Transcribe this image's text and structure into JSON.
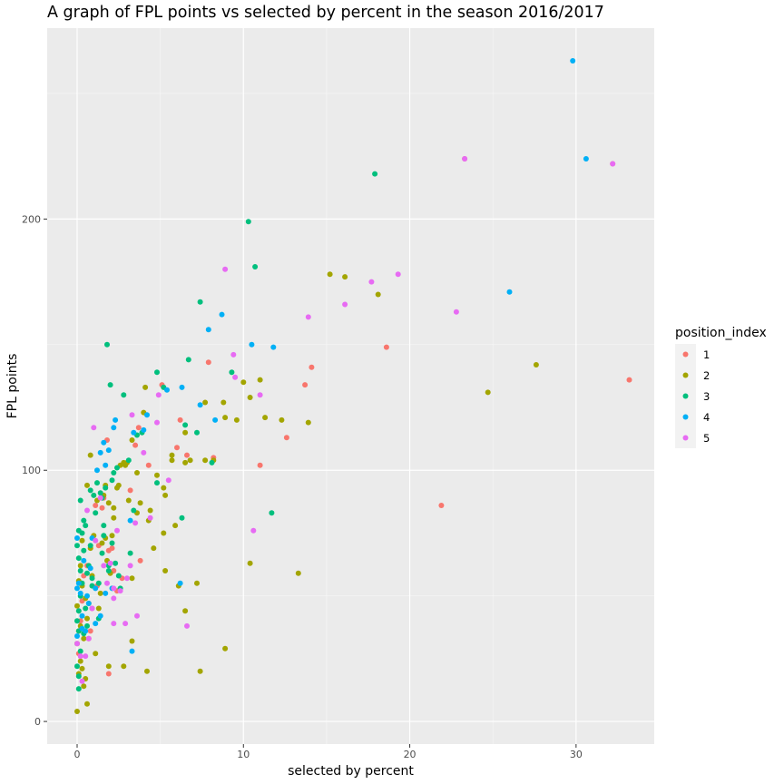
{
  "chart_data": {
    "type": "scatter",
    "title": "A graph of FPL points vs selected by percent in the season 2016/2017",
    "xlabel": "selected by percent",
    "ylabel": "FPL points",
    "xlim": [
      -1.8,
      34.7
    ],
    "ylim": [
      -9,
      276
    ],
    "x_ticks": [
      0,
      10,
      20,
      30
    ],
    "x_tick_labels": [
      "0",
      "10",
      "20",
      "30"
    ],
    "y_ticks": [
      0,
      100,
      200
    ],
    "y_tick_labels": [
      "0",
      "100",
      "200"
    ],
    "grid": true,
    "legend": {
      "title": "position_index",
      "position": "right",
      "entries": [
        {
          "label": "1",
          "color": "#F8766D"
        },
        {
          "label": "2",
          "color": "#A3A500"
        },
        {
          "label": "3",
          "color": "#00BF7D"
        },
        {
          "label": "4",
          "color": "#00B0F6"
        },
        {
          "label": "5",
          "color": "#E76BF3"
        }
      ]
    },
    "series": [
      {
        "name": "1",
        "color": "#F8766D",
        "points": [
          [
            33.2,
            136
          ],
          [
            32.2,
            222
          ],
          [
            23.3,
            224
          ],
          [
            21.9,
            86
          ],
          [
            18.6,
            149
          ],
          [
            14.1,
            141
          ],
          [
            13.7,
            134
          ],
          [
            12.6,
            113
          ],
          [
            11,
            102
          ],
          [
            8.2,
            105
          ],
          [
            7.9,
            143
          ],
          [
            6.6,
            106
          ],
          [
            6.2,
            120
          ],
          [
            6,
            109
          ],
          [
            5.1,
            134
          ],
          [
            4.3,
            102
          ],
          [
            3.7,
            117
          ],
          [
            3.5,
            110
          ],
          [
            3.2,
            92
          ],
          [
            3.8,
            64
          ],
          [
            2.7,
            57
          ],
          [
            2.4,
            52
          ],
          [
            2.2,
            60
          ],
          [
            1.9,
            68
          ],
          [
            1.8,
            112
          ],
          [
            1.6,
            89
          ],
          [
            1.3,
            70
          ],
          [
            1.1,
            86
          ],
          [
            0.9,
            45
          ],
          [
            0.7,
            33
          ],
          [
            0.6,
            62
          ],
          [
            0.4,
            58
          ],
          [
            0.3,
            48
          ],
          [
            0.2,
            40
          ],
          [
            0.1,
            27
          ],
          [
            1.9,
            19
          ],
          [
            0.8,
            36
          ],
          [
            1.5,
            85
          ],
          [
            2.1,
            69
          ],
          [
            1.2,
            54
          ]
        ]
      },
      {
        "name": "2",
        "color": "#A3A500",
        "points": [
          [
            27.6,
            142
          ],
          [
            24.7,
            131
          ],
          [
            18.1,
            170
          ],
          [
            16.1,
            177
          ],
          [
            15.2,
            178
          ],
          [
            13.9,
            119
          ],
          [
            13.3,
            59
          ],
          [
            12.3,
            120
          ],
          [
            11.3,
            121
          ],
          [
            11,
            136
          ],
          [
            10.4,
            129
          ],
          [
            10.4,
            63
          ],
          [
            10,
            135
          ],
          [
            9.6,
            120
          ],
          [
            8.9,
            121
          ],
          [
            8.8,
            127
          ],
          [
            8.9,
            29
          ],
          [
            8.2,
            104
          ],
          [
            7.7,
            104
          ],
          [
            7.7,
            127
          ],
          [
            7.4,
            20
          ],
          [
            7.2,
            55
          ],
          [
            6.8,
            104
          ],
          [
            6.5,
            115
          ],
          [
            6.5,
            103
          ],
          [
            6.5,
            44
          ],
          [
            6.1,
            54
          ],
          [
            5.9,
            78
          ],
          [
            5.7,
            106
          ],
          [
            5.7,
            104
          ],
          [
            5.3,
            60
          ],
          [
            5.3,
            90
          ],
          [
            5.2,
            93
          ],
          [
            5.2,
            75
          ],
          [
            4.8,
            98
          ],
          [
            4.6,
            69
          ],
          [
            4.4,
            84
          ],
          [
            4.3,
            80
          ],
          [
            4.2,
            20
          ],
          [
            4.1,
            133
          ],
          [
            4,
            123
          ],
          [
            3.8,
            87
          ],
          [
            3.6,
            99
          ],
          [
            3.6,
            83
          ],
          [
            3.3,
            112
          ],
          [
            3.3,
            57
          ],
          [
            3.3,
            32
          ],
          [
            3.1,
            88
          ],
          [
            2.9,
            102
          ],
          [
            2.8,
            103
          ],
          [
            2.8,
            22
          ],
          [
            2.6,
            102
          ],
          [
            2.4,
            93
          ],
          [
            2.2,
            85
          ],
          [
            2.2,
            81
          ],
          [
            2.1,
            74
          ],
          [
            2,
            59
          ],
          [
            1.9,
            87
          ],
          [
            1.9,
            22
          ],
          [
            1.8,
            64
          ],
          [
            1.7,
            73
          ],
          [
            1.6,
            90
          ],
          [
            1.5,
            71
          ],
          [
            1.4,
            51
          ],
          [
            1.3,
            45
          ],
          [
            1.2,
            88
          ],
          [
            1.1,
            27
          ],
          [
            1,
            74
          ],
          [
            0.9,
            58
          ],
          [
            0.8,
            106
          ],
          [
            0.8,
            69
          ],
          [
            0.7,
            47
          ],
          [
            0.6,
            7
          ],
          [
            0.6,
            41
          ],
          [
            0.5,
            49
          ],
          [
            0.5,
            17
          ],
          [
            0.4,
            33
          ],
          [
            0.4,
            14
          ],
          [
            0.3,
            54
          ],
          [
            0.3,
            21
          ],
          [
            0.2,
            62
          ],
          [
            0.2,
            38
          ],
          [
            0.2,
            24
          ],
          [
            0.1,
            36
          ],
          [
            0.1,
            19
          ],
          [
            0,
            4
          ],
          [
            0,
            46
          ],
          [
            0,
            31
          ],
          [
            0.1,
            56
          ],
          [
            0.3,
            72
          ],
          [
            0.6,
            94
          ],
          [
            2.5,
            94
          ],
          [
            1.7,
            94
          ],
          [
            3,
            103
          ]
        ]
      },
      {
        "name": "3",
        "color": "#00BF7D",
        "points": [
          [
            17.9,
            218
          ],
          [
            10.7,
            181
          ],
          [
            10.3,
            199
          ],
          [
            11.7,
            83
          ],
          [
            9.3,
            139
          ],
          [
            8.1,
            103
          ],
          [
            7.4,
            167
          ],
          [
            7.2,
            115
          ],
          [
            6.7,
            144
          ],
          [
            6.5,
            118
          ],
          [
            6.3,
            81
          ],
          [
            5.2,
            133
          ],
          [
            4.8,
            95
          ],
          [
            4.8,
            139
          ],
          [
            3.9,
            115
          ],
          [
            3.6,
            114
          ],
          [
            3.4,
            84
          ],
          [
            3.2,
            67
          ],
          [
            3.1,
            104
          ],
          [
            2.8,
            130
          ],
          [
            2.6,
            53
          ],
          [
            2.4,
            101
          ],
          [
            2.3,
            63
          ],
          [
            2.2,
            99
          ],
          [
            2.1,
            96
          ],
          [
            2.1,
            71
          ],
          [
            2,
            134
          ],
          [
            1.9,
            62
          ],
          [
            1.8,
            150
          ],
          [
            1.7,
            93
          ],
          [
            1.6,
            78
          ],
          [
            1.5,
            89
          ],
          [
            1.4,
            91
          ],
          [
            1.3,
            41
          ],
          [
            1.3,
            55
          ],
          [
            1.2,
            95
          ],
          [
            1.1,
            83
          ],
          [
            1,
            90
          ],
          [
            0.9,
            57
          ],
          [
            0.8,
            70
          ],
          [
            0.8,
            92
          ],
          [
            0.7,
            62
          ],
          [
            0.6,
            59
          ],
          [
            0.5,
            78
          ],
          [
            0.5,
            45
          ],
          [
            0.4,
            80
          ],
          [
            0.4,
            68
          ],
          [
            0.4,
            35
          ],
          [
            0.3,
            75
          ],
          [
            0.3,
            55
          ],
          [
            0.2,
            88
          ],
          [
            0.2,
            60
          ],
          [
            0.2,
            50
          ],
          [
            0.2,
            28
          ],
          [
            0.1,
            76
          ],
          [
            0.1,
            65
          ],
          [
            0.1,
            44
          ],
          [
            0.1,
            36
          ],
          [
            0.1,
            18
          ],
          [
            0.1,
            13
          ],
          [
            0,
            70
          ],
          [
            0,
            40
          ],
          [
            0,
            22
          ],
          [
            0.6,
            38
          ],
          [
            0.9,
            54
          ],
          [
            1.9,
            60
          ],
          [
            2.5,
            58
          ],
          [
            1.5,
            67
          ],
          [
            1.6,
            74
          ]
        ]
      },
      {
        "name": "4",
        "color": "#00B0F6",
        "points": [
          [
            29.8,
            263
          ],
          [
            30.6,
            224
          ],
          [
            26,
            171
          ],
          [
            11.8,
            149
          ],
          [
            10.5,
            150
          ],
          [
            8.7,
            162
          ],
          [
            8.3,
            120
          ],
          [
            7.9,
            156
          ],
          [
            7.4,
            126
          ],
          [
            6.3,
            133
          ],
          [
            6.2,
            55
          ],
          [
            5.4,
            132
          ],
          [
            4.2,
            122
          ],
          [
            4,
            116
          ],
          [
            3.4,
            115
          ],
          [
            3.2,
            80
          ],
          [
            3.3,
            28
          ],
          [
            2.3,
            120
          ],
          [
            2.2,
            117
          ],
          [
            1.9,
            108
          ],
          [
            1.7,
            102
          ],
          [
            1.6,
            111
          ],
          [
            1.4,
            107
          ],
          [
            1.2,
            100
          ],
          [
            1.1,
            53
          ],
          [
            0.9,
            73
          ],
          [
            0.8,
            61
          ],
          [
            0.6,
            50
          ],
          [
            0.5,
            36
          ],
          [
            0.4,
            64
          ],
          [
            0.3,
            42
          ],
          [
            0.2,
            51
          ],
          [
            0.1,
            55
          ],
          [
            0,
            73
          ],
          [
            0,
            53
          ],
          [
            0,
            34
          ],
          [
            1.7,
            51
          ],
          [
            1.1,
            39
          ],
          [
            0.3,
            37
          ],
          [
            0.7,
            47
          ],
          [
            1.4,
            42
          ],
          [
            2.1,
            53
          ]
        ]
      },
      {
        "name": "5",
        "color": "#E76BF3",
        "points": [
          [
            32.2,
            222
          ],
          [
            23.3,
            224
          ],
          [
            22.8,
            163
          ],
          [
            19.3,
            178
          ],
          [
            17.7,
            175
          ],
          [
            16.1,
            166
          ],
          [
            13.9,
            161
          ],
          [
            10.6,
            76
          ],
          [
            11,
            130
          ],
          [
            9.5,
            137
          ],
          [
            9.4,
            146
          ],
          [
            8.9,
            180
          ],
          [
            6.6,
            38
          ],
          [
            5.5,
            96
          ],
          [
            4.9,
            130
          ],
          [
            4.8,
            119
          ],
          [
            4.4,
            81
          ],
          [
            4,
            107
          ],
          [
            3.6,
            42
          ],
          [
            3.5,
            79
          ],
          [
            3.3,
            122
          ],
          [
            3,
            57
          ],
          [
            2.9,
            39
          ],
          [
            2.6,
            52
          ],
          [
            2.4,
            76
          ],
          [
            2.2,
            39
          ],
          [
            2.2,
            49
          ],
          [
            2,
            63
          ],
          [
            1.8,
            55
          ],
          [
            1.6,
            62
          ],
          [
            1.4,
            89
          ],
          [
            1.1,
            72
          ],
          [
            1,
            117
          ],
          [
            0.9,
            45
          ],
          [
            0.7,
            33
          ],
          [
            0.6,
            84
          ],
          [
            0.5,
            26
          ],
          [
            0.3,
            16
          ],
          [
            0.2,
            26
          ],
          [
            0,
            31
          ],
          [
            2.2,
            53
          ],
          [
            3.2,
            62
          ]
        ]
      }
    ]
  }
}
